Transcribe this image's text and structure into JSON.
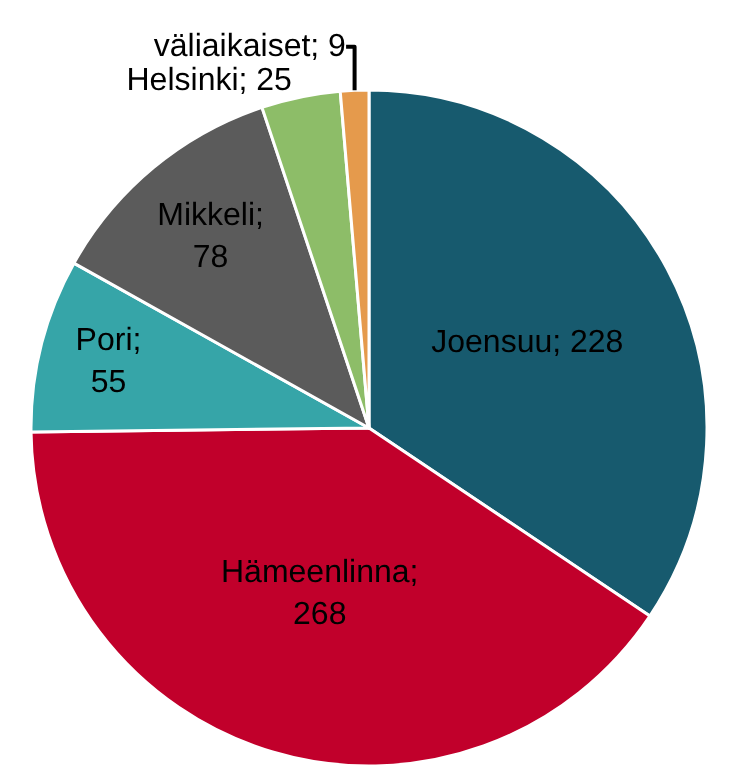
{
  "chart_data": {
    "type": "pie",
    "categories": [
      null,
      null,
      null,
      null,
      null,
      null
    ],
    "values": [
      228,
      268,
      55,
      78,
      25,
      9
    ],
    "value_labels": [
      "Joensuu; 228",
      "Hämeenlinna; 268",
      "Pori; 55",
      "Mikkeli; 78",
      "Helsinki; 25",
      "väliaikaiset; 9"
    ],
    "colors": [
      "#175a6e",
      "#c1002b",
      "#36a5a8",
      "#5b5b5b",
      "#8dbd68",
      "#e59a4c"
    ],
    "legend": false
  }
}
